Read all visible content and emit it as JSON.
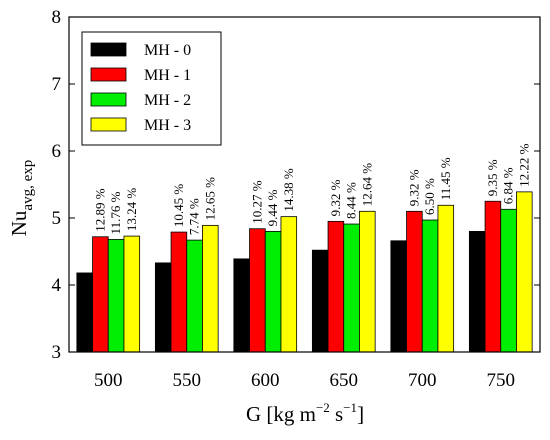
{
  "chart_data": {
    "type": "bar",
    "categories": [
      "500",
      "550",
      "600",
      "650",
      "700",
      "750"
    ],
    "series": [
      {
        "name": "MH - 0",
        "color": "#000000",
        "values": [
          4.18,
          4.33,
          4.39,
          4.52,
          4.66,
          4.8
        ]
      },
      {
        "name": "MH - 1",
        "color": "#ff0000",
        "values": [
          4.72,
          4.79,
          4.84,
          4.95,
          5.1,
          5.25
        ]
      },
      {
        "name": "MH - 2",
        "color": "#00ee00",
        "values": [
          4.68,
          4.67,
          4.8,
          4.91,
          4.97,
          5.13
        ]
      },
      {
        "name": "MH - 3",
        "color": "#ffff00",
        "values": [
          4.73,
          4.89,
          5.02,
          5.1,
          5.19,
          5.39
        ]
      }
    ],
    "annotations": [
      [
        "12.89 %",
        "11.76 %",
        "13.24 %"
      ],
      [
        "10.45 %",
        "7.74 %",
        "12.65 %"
      ],
      [
        "10.27 %",
        "9.44 %",
        "14.38 %"
      ],
      [
        "9.32 %",
        "8.44 %",
        "12.64 %"
      ],
      [
        "9.32 %",
        "6.50 %",
        "11.45 %"
      ],
      [
        "9.35 %",
        "6.84 %",
        "12.22 %"
      ]
    ],
    "ylim": [
      3,
      8
    ],
    "yticks": [
      "3",
      "4",
      "5",
      "6",
      "7",
      "8"
    ],
    "xlabel": {
      "main": "G [kg m",
      "sup1": "−2",
      "mid": " s",
      "sup2": "−1",
      "end": "]"
    },
    "ylabel": {
      "main": "Nu",
      "sub": "avg, exp"
    },
    "legend_position": "top-left",
    "grid": false
  }
}
